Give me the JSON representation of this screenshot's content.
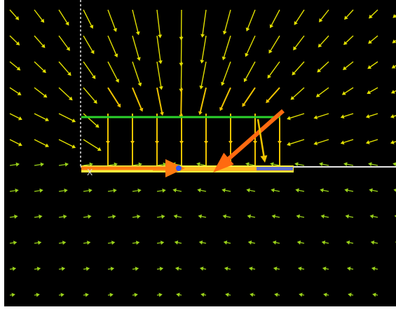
{
  "colors": {
    "background": "#000000",
    "frame": "#ffffff",
    "field_top": "#e2e000",
    "field_near": "#f0c400",
    "field_bottom": "#9ad21a",
    "axis": "#e6e6e6",
    "green_line": "#2bd22b",
    "bar_yellow": "#fff23a",
    "bar_orange": "#ff7a10",
    "bar_blue": "#3a5cff",
    "probe": "#2f55ff"
  },
  "axes": {
    "x_label": "X"
  }
}
